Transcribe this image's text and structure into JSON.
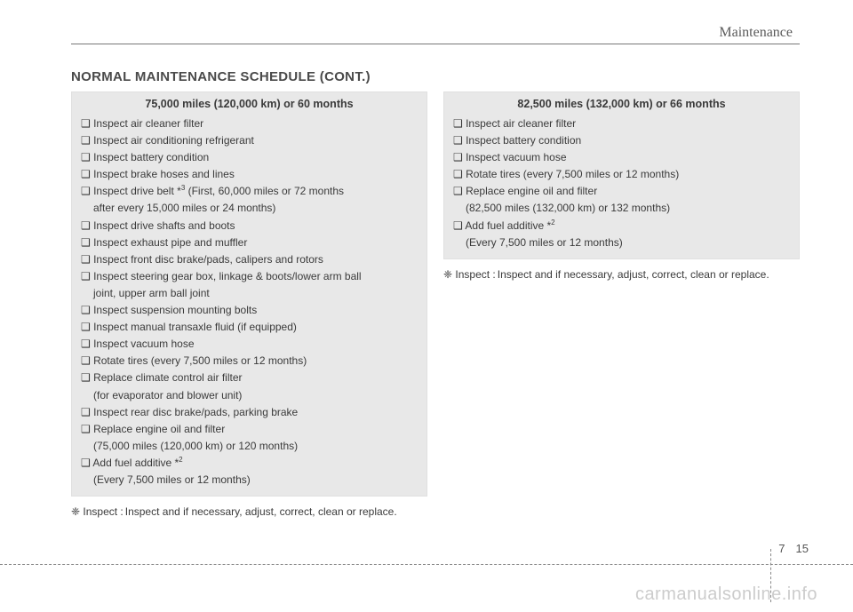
{
  "header": {
    "section": "Maintenance"
  },
  "title": "NORMAL MAINTENANCE SCHEDULE (CONT.)",
  "left": {
    "heading": "75,000 miles (120,000 km) or 60 months",
    "items": [
      {
        "text": "❑ Inspect air cleaner filter"
      },
      {
        "text": "❑ Inspect air conditioning refrigerant"
      },
      {
        "text": "❑ Inspect battery condition"
      },
      {
        "text": "❑ Inspect brake hoses and lines"
      },
      {
        "text": "❑ Inspect drive belt *",
        "sup": "3",
        "suffix": " (First, 60,000 miles or 72 months"
      },
      {
        "text": "after every 15,000 miles or 24 months)",
        "indent": true
      },
      {
        "text": "❑ Inspect drive shafts and boots"
      },
      {
        "text": "❑ Inspect exhaust pipe and muffler"
      },
      {
        "text": "❑ Inspect front disc brake/pads, calipers and rotors"
      },
      {
        "text": "❑ Inspect steering gear box, linkage & boots/lower arm ball"
      },
      {
        "text": "joint, upper arm ball joint",
        "indent": true
      },
      {
        "text": "❑ Inspect suspension mounting bolts"
      },
      {
        "text": "❑ Inspect manual transaxle fluid (if equipped)"
      },
      {
        "text": "❑ Inspect vacuum hose"
      },
      {
        "text": "❑ Rotate tires (every 7,500 miles or 12 months)"
      },
      {
        "text": "❑ Replace climate control air filter"
      },
      {
        "text": "(for evaporator and blower unit)",
        "indent": true
      },
      {
        "text": "❑ Inspect rear disc brake/pads, parking brake"
      },
      {
        "text": "❑ Replace engine oil and filter"
      },
      {
        "text": "(75,000 miles (120,000 km) or 120 months)",
        "indent": true
      },
      {
        "text": "❑ Add fuel additive *",
        "sup": "2"
      },
      {
        "text": "(Every 7,500 miles or 12 months)",
        "indent": true
      }
    ],
    "note_label": "❈ Inspect :",
    "note_text": "Inspect and if necessary, adjust, correct, clean or replace."
  },
  "right": {
    "heading": "82,500 miles (132,000 km) or 66 months",
    "items": [
      {
        "text": "❑ Inspect air cleaner filter"
      },
      {
        "text": "❑ Inspect battery condition"
      },
      {
        "text": "❑ Inspect vacuum hose"
      },
      {
        "text": "❑ Rotate tires (every 7,500 miles or 12 months)"
      },
      {
        "text": "❑ Replace engine oil and filter"
      },
      {
        "text": "(82,500 miles (132,000 km) or 132 months)",
        "indent": true
      },
      {
        "text": "❑ Add fuel additive *",
        "sup": "2"
      },
      {
        "text": "(Every 7,500 miles or 12 months)",
        "indent": true
      }
    ],
    "note_label": "❈ Inspect :",
    "note_text": "Inspect and if necessary, adjust, correct, clean or replace."
  },
  "pagenum": {
    "chapter": "7",
    "page": "15"
  },
  "watermark": "carmanualsonline.info"
}
